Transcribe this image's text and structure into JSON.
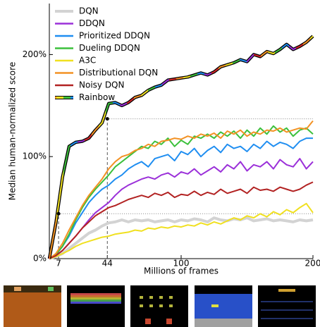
{
  "chart_data": {
    "type": "line",
    "ylabel": "Median human-normalized score",
    "xlabel": "Millions of frames",
    "x": [
      0,
      5,
      10,
      15,
      20,
      25,
      30,
      35,
      40,
      45,
      50,
      55,
      60,
      65,
      70,
      75,
      80,
      85,
      90,
      95,
      100,
      105,
      110,
      115,
      120,
      125,
      130,
      135,
      140,
      145,
      150,
      155,
      160,
      165,
      170,
      175,
      180,
      185,
      190,
      195,
      200
    ],
    "xlim": [
      0,
      200
    ],
    "xticks": [
      7,
      44,
      100,
      200
    ],
    "ylim": [
      0,
      250
    ],
    "yticks": [
      {
        "value": 0,
        "label": "0%"
      },
      {
        "value": 100,
        "label": "100%"
      },
      {
        "value": 200,
        "label": "200%"
      }
    ],
    "legend": "upper left",
    "markers": {
      "x": [
        7,
        44
      ],
      "y": [
        44,
        137
      ]
    },
    "series": [
      {
        "name": "DQN",
        "color": "#d3d3d3",
        "values": [
          0,
          2,
          5,
          10,
          15,
          20,
          25,
          28,
          32,
          35,
          36,
          38,
          36,
          38,
          37,
          38,
          36,
          37,
          38,
          36,
          38,
          37,
          39,
          38,
          36,
          40,
          38,
          37,
          39,
          38,
          40,
          37,
          38,
          39,
          37,
          38,
          37,
          36,
          38,
          37,
          38
        ]
      },
      {
        "name": "DDQN",
        "color": "#9b30d9",
        "values": [
          0,
          3,
          8,
          15,
          22,
          30,
          38,
          45,
          50,
          55,
          62,
          68,
          72,
          75,
          78,
          80,
          78,
          82,
          84,
          80,
          85,
          83,
          88,
          82,
          86,
          90,
          85,
          92,
          88,
          95,
          86,
          92,
          90,
          95,
          88,
          97,
          92,
          90,
          98,
          88,
          95
        ]
      },
      {
        "name": "Prioritized DDQN",
        "color": "#1f8ef1",
        "values": [
          0,
          4,
          12,
          22,
          35,
          45,
          55,
          62,
          68,
          72,
          78,
          82,
          88,
          92,
          95,
          90,
          98,
          100,
          102,
          96,
          105,
          102,
          108,
          100,
          106,
          110,
          104,
          112,
          108,
          110,
          105,
          112,
          108,
          115,
          110,
          114,
          112,
          108,
          115,
          118,
          118
        ]
      },
      {
        "name": "Dueling DDQN",
        "color": "#3cc03c",
        "values": [
          0,
          4,
          12,
          24,
          38,
          50,
          60,
          68,
          75,
          82,
          90,
          95,
          100,
          105,
          110,
          108,
          115,
          112,
          118,
          110,
          116,
          112,
          120,
          118,
          122,
          118,
          124,
          120,
          125,
          118,
          126,
          120,
          128,
          122,
          130,
          124,
          128,
          120,
          126,
          128,
          122
        ]
      },
      {
        "name": "A3C",
        "color": "#f0e020",
        "values": [
          0,
          2,
          5,
          8,
          12,
          15,
          17,
          19,
          21,
          22,
          24,
          25,
          26,
          28,
          27,
          30,
          29,
          31,
          30,
          32,
          31,
          33,
          32,
          35,
          33,
          36,
          34,
          37,
          40,
          38,
          42,
          40,
          44,
          41,
          46,
          43,
          48,
          45,
          50,
          54,
          45
        ]
      },
      {
        "name": "Distributional DQN",
        "color": "#f39224",
        "values": [
          0,
          5,
          15,
          28,
          40,
          52,
          62,
          70,
          78,
          88,
          95,
          100,
          102,
          106,
          108,
          112,
          110,
          115,
          116,
          118,
          117,
          120,
          118,
          122,
          120,
          123,
          118,
          125,
          122,
          126,
          120,
          124,
          122,
          126,
          125,
          128,
          124,
          126,
          128,
          127,
          135
        ]
      },
      {
        "name": "Noisy DQN",
        "color": "#b22222",
        "values": [
          0,
          3,
          8,
          15,
          22,
          30,
          36,
          42,
          46,
          50,
          52,
          55,
          58,
          60,
          62,
          60,
          64,
          62,
          65,
          60,
          63,
          62,
          66,
          62,
          65,
          63,
          68,
          64,
          66,
          68,
          64,
          70,
          67,
          68,
          66,
          70,
          68,
          66,
          68,
          72,
          75
        ]
      },
      {
        "name": "Rainbow",
        "color": "#000000",
        "gradient": [
          "#d62728",
          "#f39224",
          "#f0e020",
          "#3cc03c",
          "#1f8ef1",
          "#9b30d9"
        ],
        "values": [
          0,
          35,
          80,
          110,
          114,
          115,
          118,
          126,
          133,
          152,
          153,
          150,
          153,
          158,
          160,
          165,
          168,
          170,
          175,
          176,
          177,
          178,
          180,
          182,
          180,
          183,
          188,
          190,
          192,
          195,
          193,
          200,
          198,
          203,
          201,
          205,
          210,
          205,
          208,
          212,
          218
        ]
      }
    ]
  }
}
